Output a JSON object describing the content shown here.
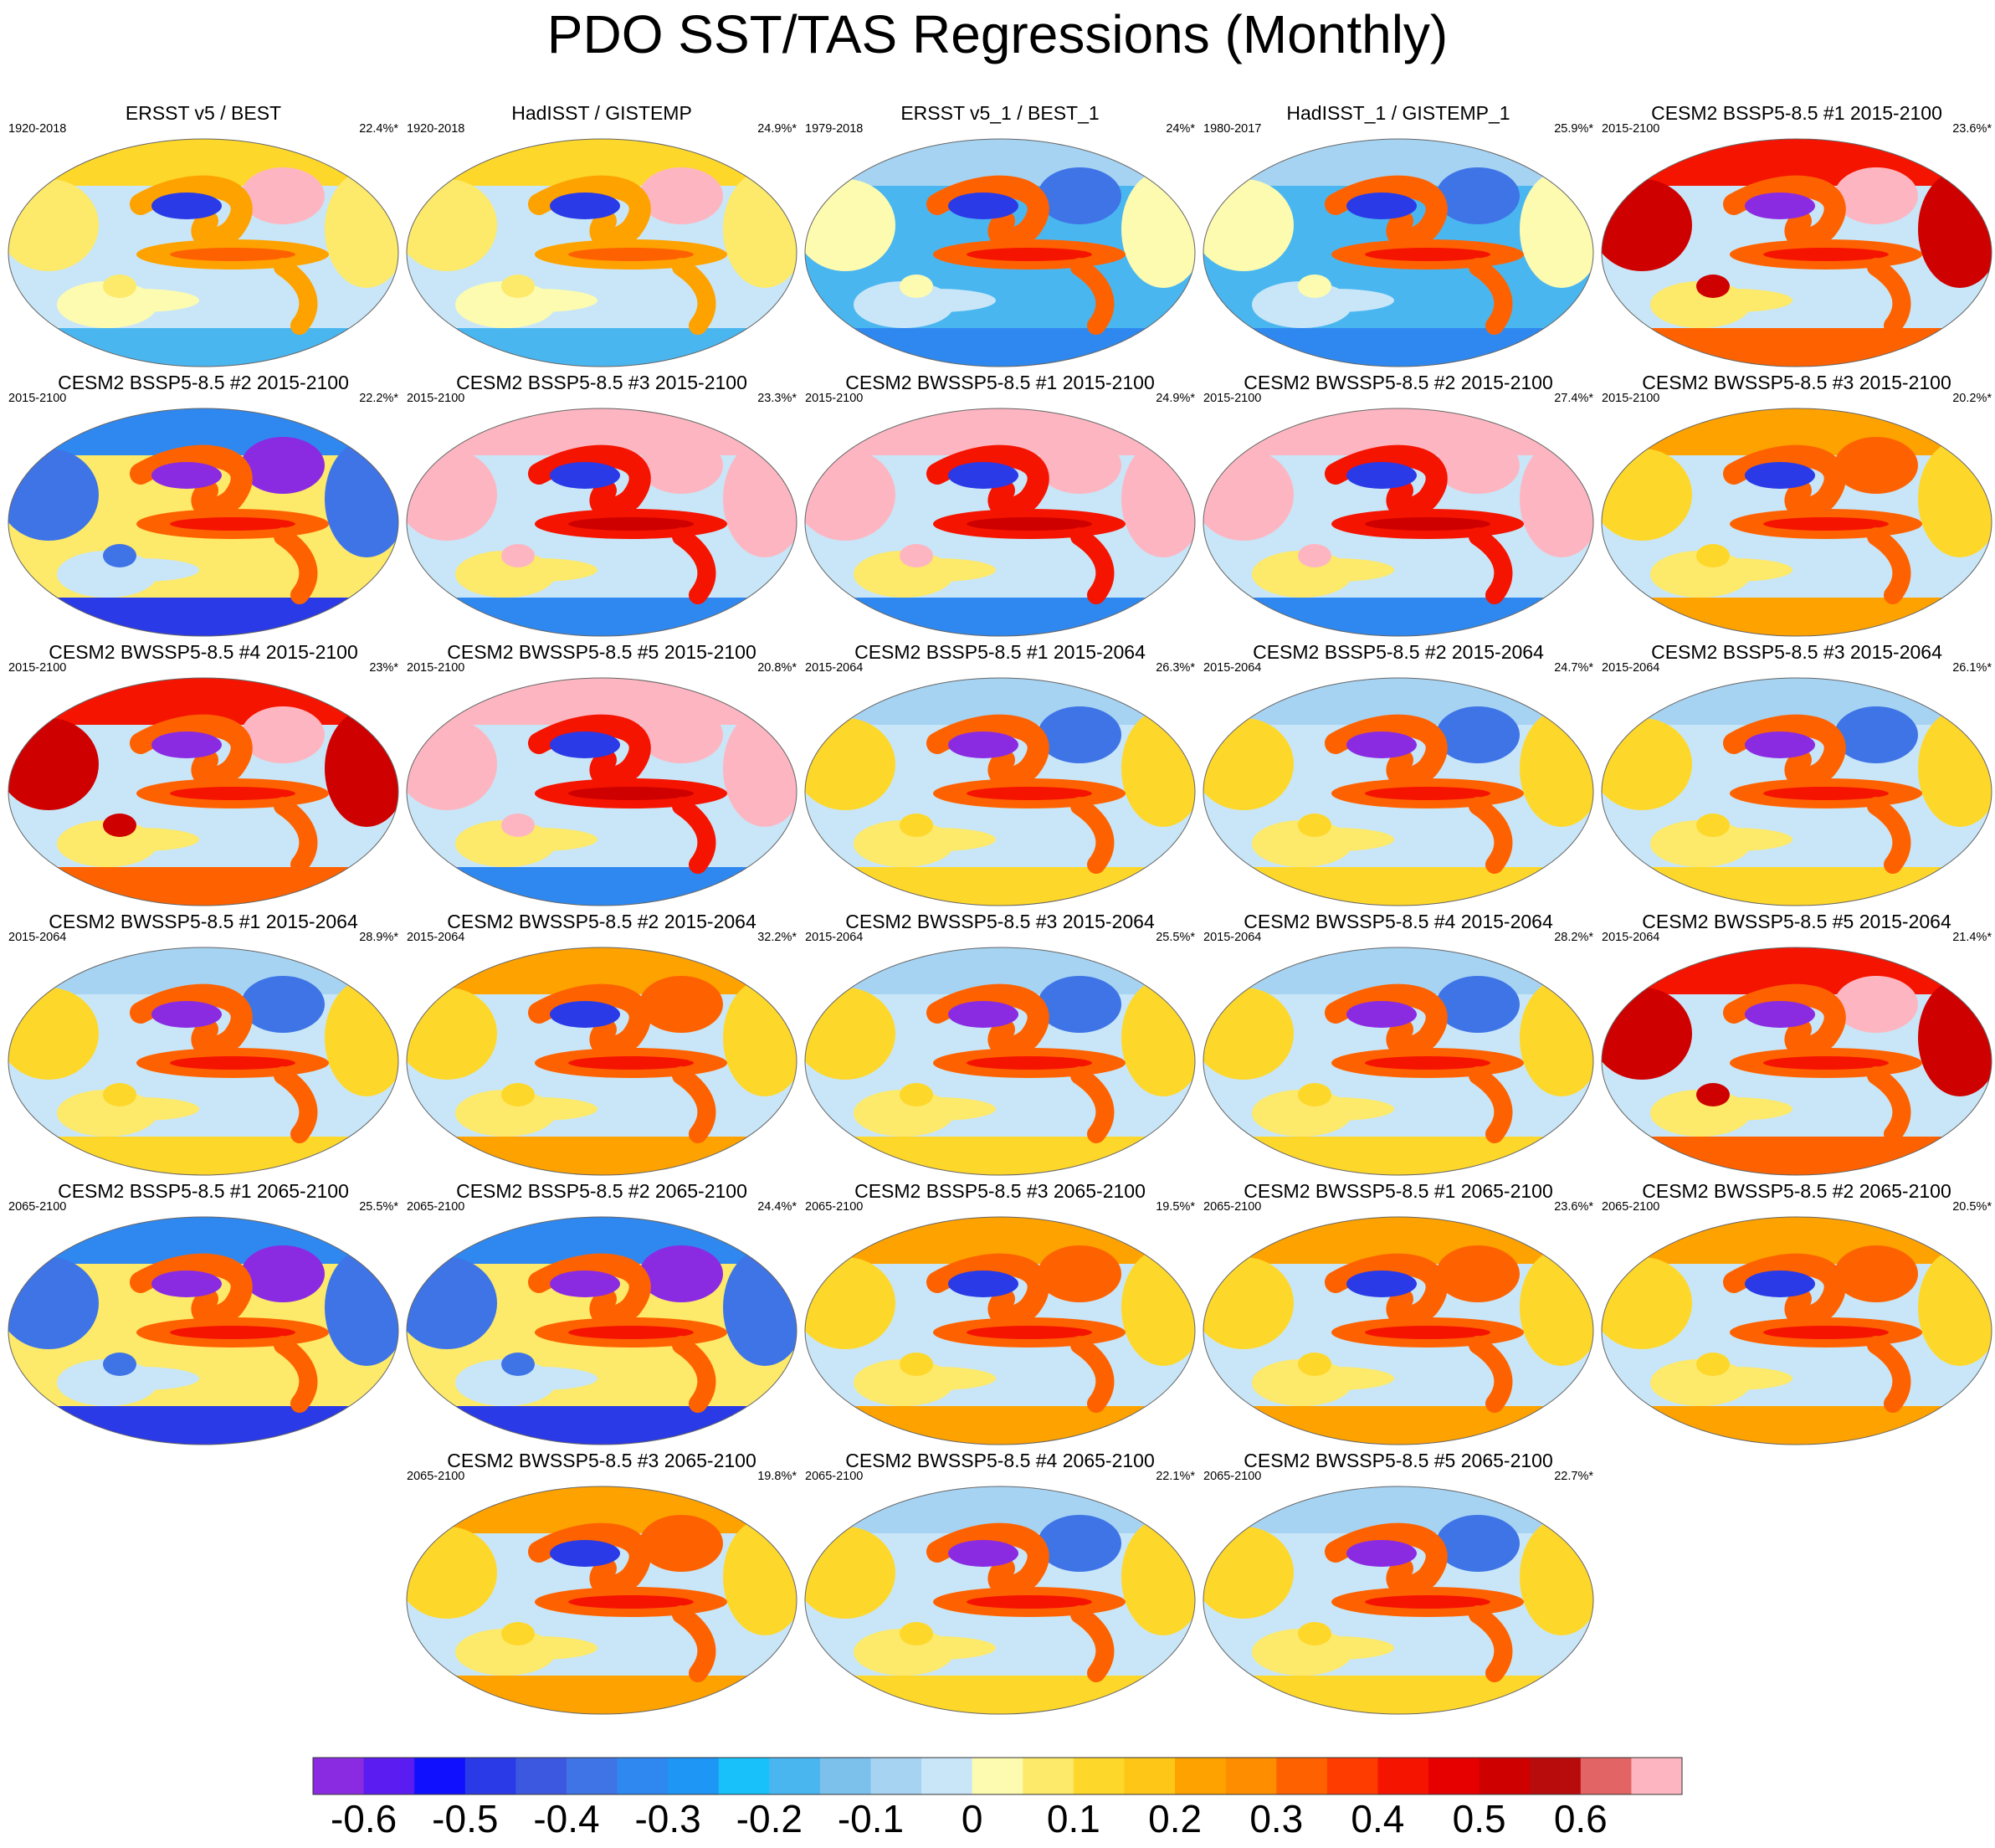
{
  "title": "PDO SST/TAS Regressions (Monthly)",
  "panels": [
    {
      "title": "ERSST v5 / BEST",
      "left": "1920-2018",
      "right": "22.4%*",
      "style": "obs"
    },
    {
      "title": "HadISST / GISTEMP",
      "left": "1920-2018",
      "right": "24.9%*",
      "style": "obs"
    },
    {
      "title": "ERSST v5_1 / BEST_1",
      "left": "1979-2018",
      "right": "24%*",
      "style": "obs-cool"
    },
    {
      "title": "HadISST_1 / GISTEMP_1",
      "left": "1980-2017",
      "right": "25.9%*",
      "style": "obs-cool"
    },
    {
      "title": "CESM2 BSSP5-8.5 #1 2015-2100",
      "left": "2015-2100",
      "right": "23.6%*",
      "style": "hot"
    },
    {
      "title": "CESM2 BSSP5-8.5 #2 2015-2100",
      "left": "2015-2100",
      "right": "22.2%*",
      "style": "cold"
    },
    {
      "title": "CESM2 BSSP5-8.5 #3 2015-2100",
      "left": "2015-2100",
      "right": "23.3%*",
      "style": "pink"
    },
    {
      "title": "CESM2 BWSSP5-8.5 #1 2015-2100",
      "left": "2015-2100",
      "right": "24.9%*",
      "style": "pink"
    },
    {
      "title": "CESM2 BWSSP5-8.5 #2 2015-2100",
      "left": "2015-2100",
      "right": "27.4%*",
      "style": "pink"
    },
    {
      "title": "CESM2 BWSSP5-8.5 #3 2015-2100",
      "left": "2015-2100",
      "right": "20.2%*",
      "style": "warm"
    },
    {
      "title": "CESM2 BWSSP5-8.5 #4 2015-2100",
      "left": "2015-2100",
      "right": "23%*",
      "style": "hot"
    },
    {
      "title": "CESM2 BWSSP5-8.5 #5 2015-2100",
      "left": "2015-2100",
      "right": "20.8%*",
      "style": "pink"
    },
    {
      "title": "CESM2 BSSP5-8.5 #1 2015-2064",
      "left": "2015-2064",
      "right": "26.3%*",
      "style": "mixed"
    },
    {
      "title": "CESM2 BSSP5-8.5 #2 2015-2064",
      "left": "2015-2064",
      "right": "24.7%*",
      "style": "mixed"
    },
    {
      "title": "CESM2 BSSP5-8.5 #3 2015-2064",
      "left": "2015-2064",
      "right": "26.1%*",
      "style": "mixed"
    },
    {
      "title": "CESM2 BWSSP5-8.5 #1 2015-2064",
      "left": "2015-2064",
      "right": "28.9%*",
      "style": "mixed"
    },
    {
      "title": "CESM2 BWSSP5-8.5 #2 2015-2064",
      "left": "2015-2064",
      "right": "32.2%*",
      "style": "warm"
    },
    {
      "title": "CESM2 BWSSP5-8.5 #3 2015-2064",
      "left": "2015-2064",
      "right": "25.5%*",
      "style": "mixed"
    },
    {
      "title": "CESM2 BWSSP5-8.5 #4 2015-2064",
      "left": "2015-2064",
      "right": "28.2%*",
      "style": "mixed"
    },
    {
      "title": "CESM2 BWSSP5-8.5 #5 2015-2064",
      "left": "2015-2064",
      "right": "21.4%*",
      "style": "hot"
    },
    {
      "title": "CESM2 BSSP5-8.5 #1 2065-2100",
      "left": "2065-2100",
      "right": "25.5%*",
      "style": "cold"
    },
    {
      "title": "CESM2 BSSP5-8.5 #2 2065-2100",
      "left": "2065-2100",
      "right": "24.4%*",
      "style": "cold"
    },
    {
      "title": "CESM2 BSSP5-8.5 #3 2065-2100",
      "left": "2065-2100",
      "right": "19.5%*",
      "style": "warm"
    },
    {
      "title": "CESM2 BWSSP5-8.5 #1 2065-2100",
      "left": "2065-2100",
      "right": "23.6%*",
      "style": "warm"
    },
    {
      "title": "CESM2 BWSSP5-8.5 #2 2065-2100",
      "left": "2065-2100",
      "right": "20.5%*",
      "style": "warm"
    },
    {
      "title": "CESM2 BWSSP5-8.5 #3 2065-2100",
      "left": "2065-2100",
      "right": "19.8%*",
      "style": "warm"
    },
    {
      "title": "CESM2 BWSSP5-8.5 #4 2065-2100",
      "left": "2065-2100",
      "right": "22.1%*",
      "style": "mixed"
    },
    {
      "title": "CESM2 BWSSP5-8.5 #5 2065-2100",
      "left": "2065-2100",
      "right": "22.7%*",
      "style": "mixed"
    }
  ],
  "colorbar": {
    "colors": [
      "#8a2be2",
      "#5a1cf0",
      "#1010ff",
      "#2a3ae6",
      "#3c58e0",
      "#3f74e6",
      "#2f88f0",
      "#1e96f5",
      "#19c1fa",
      "#4ab6f0",
      "#7cc0ec",
      "#a6d3f2",
      "#c8e6f7",
      "#fdfbb0",
      "#fde96a",
      "#fed72b",
      "#fec617",
      "#fea200",
      "#fe8e00",
      "#fe6200",
      "#fe3c00",
      "#f51400",
      "#e60000",
      "#cf0000",
      "#b80c0c",
      "#e26464",
      "#fdb6c1"
    ],
    "tick_labels": [
      "-0.6",
      "-0.5",
      "-0.4",
      "-0.3",
      "-0.2",
      "-0.1",
      "0",
      "0.1",
      "0.2",
      "0.3",
      "0.4",
      "0.5",
      "0.6"
    ]
  }
}
